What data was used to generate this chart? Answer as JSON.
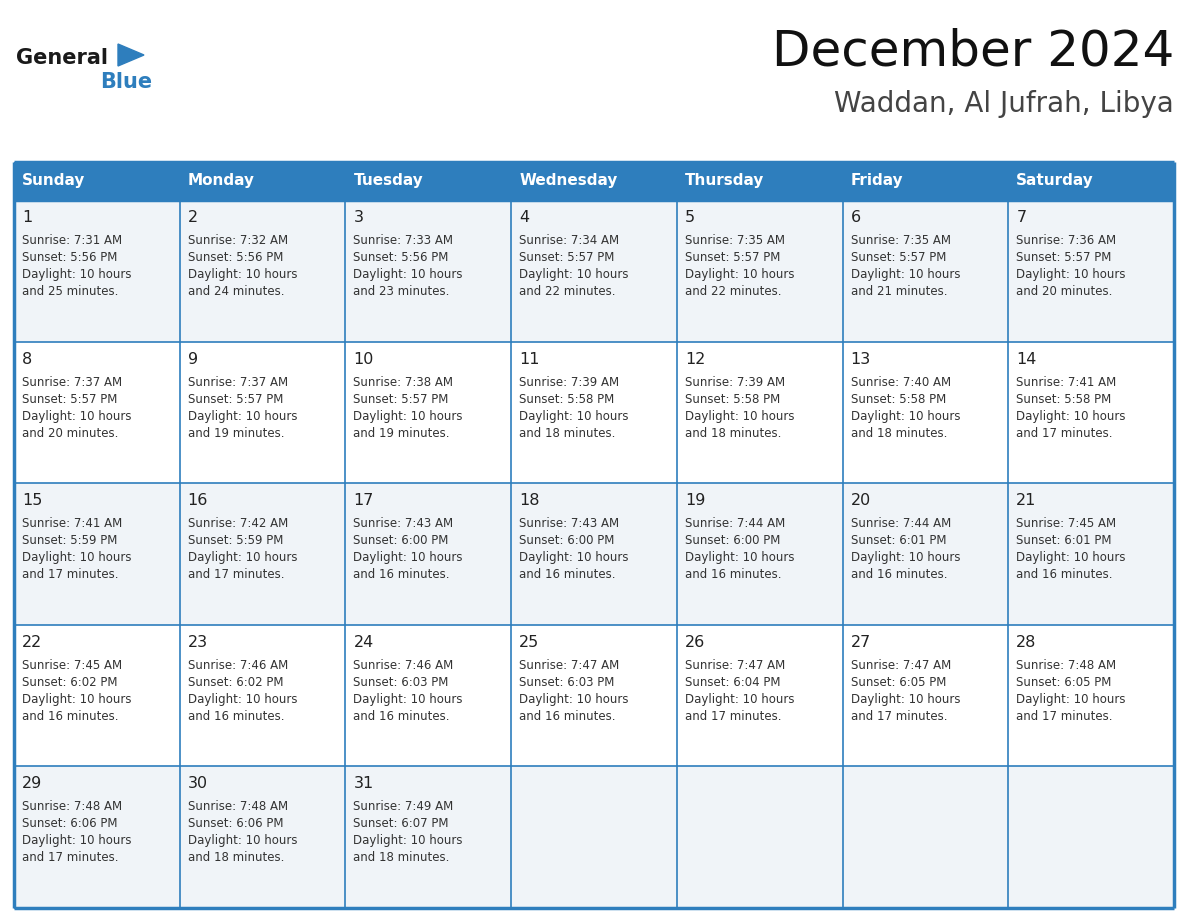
{
  "title": "December 2024",
  "subtitle": "Waddan, Al Jufrah, Libya",
  "days_of_week": [
    "Sunday",
    "Monday",
    "Tuesday",
    "Wednesday",
    "Thursday",
    "Friday",
    "Saturday"
  ],
  "header_bg": "#2E7EBD",
  "header_text": "#FFFFFF",
  "row_bg_odd": "#F0F4F8",
  "row_bg_even": "#FFFFFF",
  "border_color": "#2E7EBD",
  "cell_text_color": "#333333",
  "calendar_data": [
    [
      {
        "day": 1,
        "sunrise": "7:31 AM",
        "sunset": "5:56 PM",
        "daylight_hours": 10,
        "daylight_mins": 25
      },
      {
        "day": 2,
        "sunrise": "7:32 AM",
        "sunset": "5:56 PM",
        "daylight_hours": 10,
        "daylight_mins": 24
      },
      {
        "day": 3,
        "sunrise": "7:33 AM",
        "sunset": "5:56 PM",
        "daylight_hours": 10,
        "daylight_mins": 23
      },
      {
        "day": 4,
        "sunrise": "7:34 AM",
        "sunset": "5:57 PM",
        "daylight_hours": 10,
        "daylight_mins": 22
      },
      {
        "day": 5,
        "sunrise": "7:35 AM",
        "sunset": "5:57 PM",
        "daylight_hours": 10,
        "daylight_mins": 22
      },
      {
        "day": 6,
        "sunrise": "7:35 AM",
        "sunset": "5:57 PM",
        "daylight_hours": 10,
        "daylight_mins": 21
      },
      {
        "day": 7,
        "sunrise": "7:36 AM",
        "sunset": "5:57 PM",
        "daylight_hours": 10,
        "daylight_mins": 20
      }
    ],
    [
      {
        "day": 8,
        "sunrise": "7:37 AM",
        "sunset": "5:57 PM",
        "daylight_hours": 10,
        "daylight_mins": 20
      },
      {
        "day": 9,
        "sunrise": "7:37 AM",
        "sunset": "5:57 PM",
        "daylight_hours": 10,
        "daylight_mins": 19
      },
      {
        "day": 10,
        "sunrise": "7:38 AM",
        "sunset": "5:57 PM",
        "daylight_hours": 10,
        "daylight_mins": 19
      },
      {
        "day": 11,
        "sunrise": "7:39 AM",
        "sunset": "5:58 PM",
        "daylight_hours": 10,
        "daylight_mins": 18
      },
      {
        "day": 12,
        "sunrise": "7:39 AM",
        "sunset": "5:58 PM",
        "daylight_hours": 10,
        "daylight_mins": 18
      },
      {
        "day": 13,
        "sunrise": "7:40 AM",
        "sunset": "5:58 PM",
        "daylight_hours": 10,
        "daylight_mins": 18
      },
      {
        "day": 14,
        "sunrise": "7:41 AM",
        "sunset": "5:58 PM",
        "daylight_hours": 10,
        "daylight_mins": 17
      }
    ],
    [
      {
        "day": 15,
        "sunrise": "7:41 AM",
        "sunset": "5:59 PM",
        "daylight_hours": 10,
        "daylight_mins": 17
      },
      {
        "day": 16,
        "sunrise": "7:42 AM",
        "sunset": "5:59 PM",
        "daylight_hours": 10,
        "daylight_mins": 17
      },
      {
        "day": 17,
        "sunrise": "7:43 AM",
        "sunset": "6:00 PM",
        "daylight_hours": 10,
        "daylight_mins": 16
      },
      {
        "day": 18,
        "sunrise": "7:43 AM",
        "sunset": "6:00 PM",
        "daylight_hours": 10,
        "daylight_mins": 16
      },
      {
        "day": 19,
        "sunrise": "7:44 AM",
        "sunset": "6:00 PM",
        "daylight_hours": 10,
        "daylight_mins": 16
      },
      {
        "day": 20,
        "sunrise": "7:44 AM",
        "sunset": "6:01 PM",
        "daylight_hours": 10,
        "daylight_mins": 16
      },
      {
        "day": 21,
        "sunrise": "7:45 AM",
        "sunset": "6:01 PM",
        "daylight_hours": 10,
        "daylight_mins": 16
      }
    ],
    [
      {
        "day": 22,
        "sunrise": "7:45 AM",
        "sunset": "6:02 PM",
        "daylight_hours": 10,
        "daylight_mins": 16
      },
      {
        "day": 23,
        "sunrise": "7:46 AM",
        "sunset": "6:02 PM",
        "daylight_hours": 10,
        "daylight_mins": 16
      },
      {
        "day": 24,
        "sunrise": "7:46 AM",
        "sunset": "6:03 PM",
        "daylight_hours": 10,
        "daylight_mins": 16
      },
      {
        "day": 25,
        "sunrise": "7:47 AM",
        "sunset": "6:03 PM",
        "daylight_hours": 10,
        "daylight_mins": 16
      },
      {
        "day": 26,
        "sunrise": "7:47 AM",
        "sunset": "6:04 PM",
        "daylight_hours": 10,
        "daylight_mins": 17
      },
      {
        "day": 27,
        "sunrise": "7:47 AM",
        "sunset": "6:05 PM",
        "daylight_hours": 10,
        "daylight_mins": 17
      },
      {
        "day": 28,
        "sunrise": "7:48 AM",
        "sunset": "6:05 PM",
        "daylight_hours": 10,
        "daylight_mins": 17
      }
    ],
    [
      {
        "day": 29,
        "sunrise": "7:48 AM",
        "sunset": "6:06 PM",
        "daylight_hours": 10,
        "daylight_mins": 17
      },
      {
        "day": 30,
        "sunrise": "7:48 AM",
        "sunset": "6:06 PM",
        "daylight_hours": 10,
        "daylight_mins": 18
      },
      {
        "day": 31,
        "sunrise": "7:49 AM",
        "sunset": "6:07 PM",
        "daylight_hours": 10,
        "daylight_mins": 18
      },
      null,
      null,
      null,
      null
    ]
  ]
}
